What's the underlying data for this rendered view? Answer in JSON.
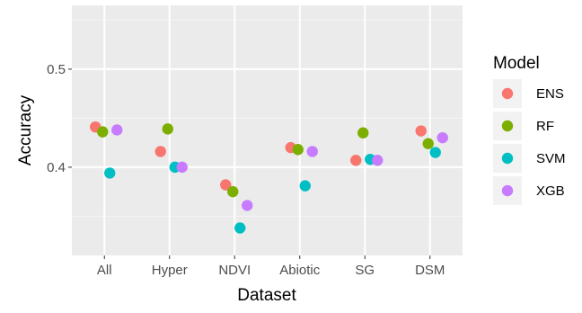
{
  "chart_data": {
    "type": "scatter",
    "xlabel": "Dataset",
    "ylabel": "Accuracy",
    "categories": [
      "All",
      "Hyper",
      "NDVI",
      "Abiotic",
      "SG",
      "DSM"
    ],
    "ylim": [
      0.31,
      0.565
    ],
    "yticks": [
      0.4,
      0.5
    ],
    "ytick_labels": [
      "0.4",
      "0.5"
    ],
    "grid": true,
    "legend": {
      "title": "Model",
      "position": "right"
    },
    "series": [
      {
        "name": "ENS",
        "color": "#F8766D",
        "values": [
          0.441,
          0.416,
          0.382,
          0.42,
          0.407,
          0.437
        ]
      },
      {
        "name": "RF",
        "color": "#7CAE00",
        "values": [
          0.436,
          0.439,
          0.375,
          0.418,
          0.435,
          0.424
        ]
      },
      {
        "name": "SVM",
        "color": "#00BFC4",
        "values": [
          0.394,
          0.4,
          0.338,
          0.381,
          0.408,
          0.415
        ]
      },
      {
        "name": "XGB",
        "color": "#C77CFF",
        "values": [
          0.438,
          0.4,
          0.361,
          0.416,
          0.407,
          0.43
        ]
      }
    ]
  }
}
